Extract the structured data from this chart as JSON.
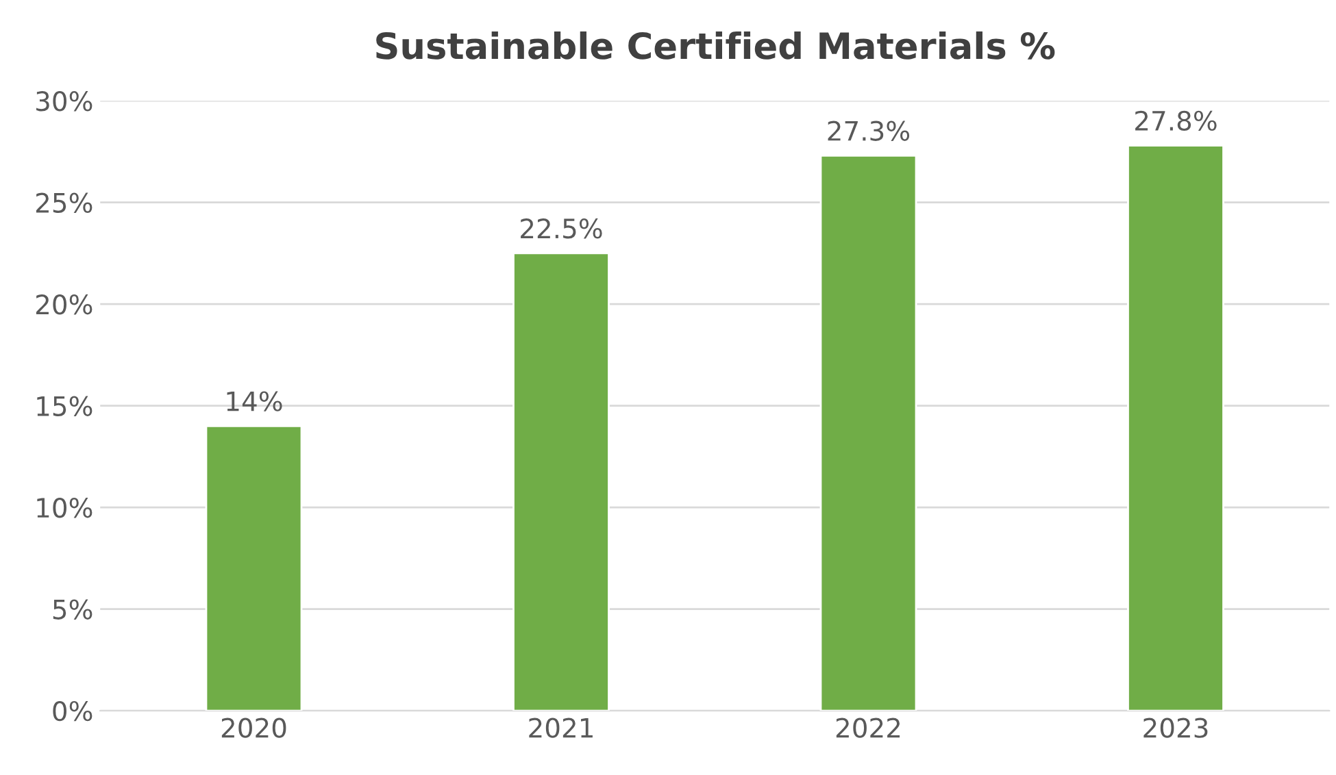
{
  "chart_data": {
    "type": "bar",
    "title": "Sustainable Certified Materials %",
    "categories": [
      "2020",
      "2021",
      "2022",
      "2023"
    ],
    "values": [
      14,
      22.5,
      27.3,
      27.8
    ],
    "value_labels": [
      "14%",
      "22.5%",
      "27.3%",
      "27.8%"
    ],
    "color": "#70ad47",
    "ylim": [
      0,
      30
    ],
    "yticks": [
      {
        "value": 0,
        "label": "0%"
      },
      {
        "value": 5,
        "label": "5%"
      },
      {
        "value": 10,
        "label": "10%"
      },
      {
        "value": 15,
        "label": "15%"
      },
      {
        "value": 20,
        "label": "20%"
      },
      {
        "value": 25,
        "label": "25%"
      },
      {
        "value": 30,
        "label": "30%"
      }
    ],
    "grid": "y",
    "legend": false
  }
}
